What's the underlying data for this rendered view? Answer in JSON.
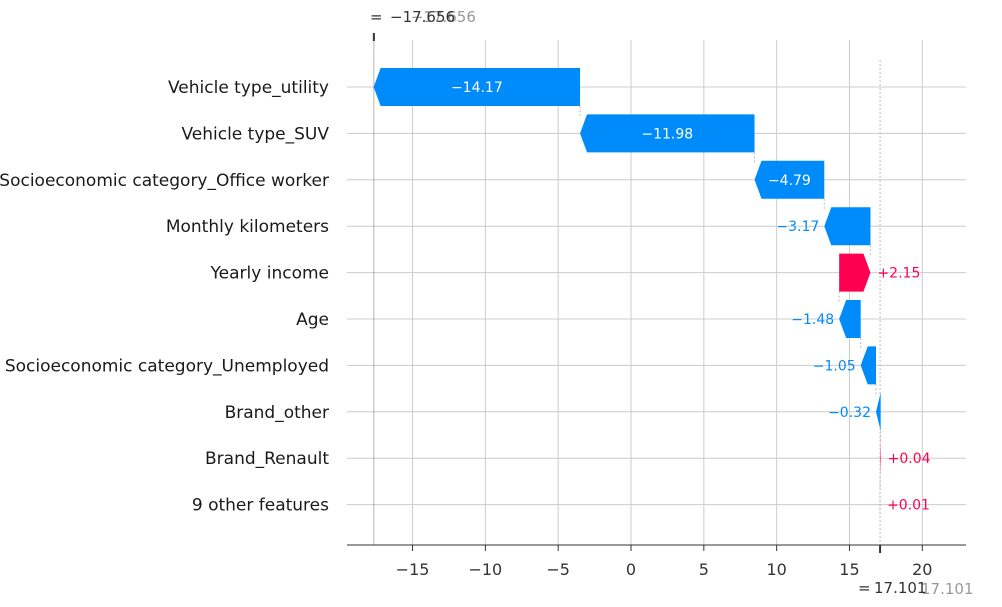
{
  "chart_data": {
    "type": "waterfall",
    "base_value": -17.656,
    "final_value": 17.101,
    "base_label_prefix": "= ",
    "final_label_prefix": "= ",
    "base_value_text": "−17.656",
    "final_value_text": "17.101",
    "xlim": [
      -19.5,
      23
    ],
    "xticks": [
      -15,
      -10,
      -5,
      0,
      5,
      10,
      15,
      20
    ],
    "xtick_labels": [
      "−15",
      "−10",
      "−5",
      "0",
      "5",
      "10",
      "15",
      "20"
    ],
    "features": [
      {
        "name": "Vehicle type_utility",
        "start": -3.5,
        "end": -17.67,
        "value": -14.17,
        "label": "−14.17"
      },
      {
        "name": "Vehicle type_SUV",
        "start": 8.48,
        "end": -3.5,
        "value": -11.98,
        "label": "−11.98"
      },
      {
        "name": "Socioeconomic category_Office worker",
        "start": 13.27,
        "end": 8.48,
        "value": -4.79,
        "label": "−4.79"
      },
      {
        "name": "Monthly kilometers",
        "start": 16.44,
        "end": 13.27,
        "value": -3.17,
        "label": "−3.17"
      },
      {
        "name": "Yearly income",
        "start": 14.29,
        "end": 16.44,
        "value": 2.15,
        "label": "+2.15"
      },
      {
        "name": "Age",
        "start": 15.77,
        "end": 14.29,
        "value": -1.48,
        "label": "−1.48"
      },
      {
        "name": "Socioeconomic category_Unemployed",
        "start": 16.82,
        "end": 15.77,
        "value": -1.05,
        "label": "−1.05"
      },
      {
        "name": "Brand_other",
        "start": 17.14,
        "end": 16.82,
        "value": -0.32,
        "label": "−0.32"
      },
      {
        "name": "Brand_Renault",
        "start": 17.1,
        "end": 17.14,
        "value": 0.04,
        "label": "+0.04"
      },
      {
        "name": "9 other features",
        "start": 17.09,
        "end": 17.1,
        "value": 0.01,
        "label": "+0.01"
      }
    ],
    "colors": {
      "negative": "#008bfb",
      "positive": "#ff0051",
      "grid": "#cccccc",
      "axis": "#333333",
      "connector": "#bbbbbb"
    }
  }
}
